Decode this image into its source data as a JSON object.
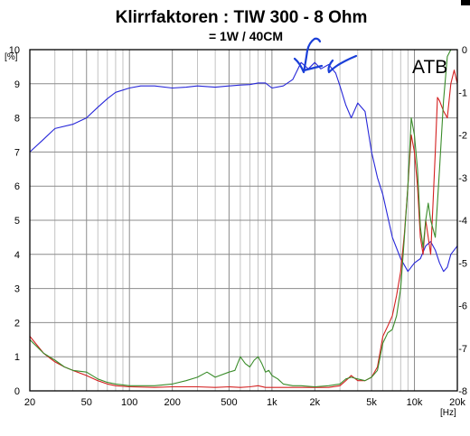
{
  "chart_data": {
    "type": "line",
    "title": "Klirrfaktoren : TIW 300 - 8 Ohm",
    "subtitle": "= 1W / 40CM",
    "xscale": "log",
    "xlim": [
      20,
      20000
    ],
    "x_ticks": [
      {
        "value": 20,
        "label": "20"
      },
      {
        "value": 50,
        "label": "50"
      },
      {
        "value": 100,
        "label": "100"
      },
      {
        "value": 200,
        "label": "200"
      },
      {
        "value": 500,
        "label": "500"
      },
      {
        "value": 1000,
        "label": "1k"
      },
      {
        "value": 2000,
        "label": "2k"
      },
      {
        "value": 5000,
        "label": "5k"
      },
      {
        "value": 10000,
        "label": "10k"
      },
      {
        "value": 20000,
        "label": "20k"
      }
    ],
    "x_unit": "[Hz]",
    "ylim": [
      0,
      10
    ],
    "y_ticks_left": [
      "0",
      "1",
      "2",
      "3",
      "4",
      "5",
      "6",
      "7",
      "8",
      "9",
      "10"
    ],
    "y_unit_left": "[%]",
    "y2lim": [
      -8,
      0
    ],
    "y_ticks_right": [
      "-8",
      "-7",
      "-6",
      "-5",
      "-4",
      "-3",
      "-2",
      "-1",
      "0"
    ],
    "grid": true,
    "annotation": "ATB",
    "series": [
      {
        "color": "#2727d9",
        "axis": "right",
        "x": [
          20,
          25,
          30,
          40,
          50,
          60,
          70,
          80,
          100,
          120,
          150,
          200,
          250,
          300,
          400,
          500,
          600,
          700,
          800,
          900,
          1000,
          1200,
          1400,
          1600,
          1800,
          2000,
          2200,
          2500,
          2800,
          3000,
          3300,
          3600,
          4000,
          4500,
          5000,
          5500,
          6000,
          7000,
          8000,
          9000,
          10000,
          11000,
          12000,
          13000,
          14000,
          15000,
          16000,
          17000,
          18000,
          20000
        ],
        "values": [
          -2.4,
          -2.1,
          -1.85,
          -1.75,
          -1.6,
          -1.35,
          -1.15,
          -1.0,
          -0.9,
          -0.85,
          -0.85,
          -0.9,
          -0.88,
          -0.85,
          -0.88,
          -0.85,
          -0.83,
          -0.82,
          -0.78,
          -0.78,
          -0.9,
          -0.85,
          -0.7,
          -0.3,
          -0.45,
          -0.3,
          -0.45,
          -0.35,
          -0.55,
          -0.85,
          -1.3,
          -1.6,
          -1.25,
          -1.45,
          -2.4,
          -3.0,
          -3.4,
          -4.4,
          -4.9,
          -5.2,
          -5.0,
          -4.9,
          -4.6,
          -4.5,
          -4.7,
          -5.0,
          -5.2,
          -5.1,
          -4.8,
          -4.6
        ]
      },
      {
        "color": "#d42020",
        "axis": "left",
        "x": [
          20,
          25,
          30,
          35,
          40,
          50,
          60,
          70,
          80,
          100,
          150,
          200,
          300,
          400,
          500,
          600,
          700,
          800,
          900,
          1000,
          1500,
          2000,
          2500,
          3000,
          3300,
          3600,
          4000,
          4500,
          5000,
          5500,
          6000,
          6500,
          7000,
          7500,
          8000,
          8500,
          9000,
          9500,
          10000,
          10500,
          11000,
          11500,
          12000,
          12500,
          13000,
          13500,
          14000,
          14500,
          15000,
          16000,
          17000,
          18000,
          19000,
          20000
        ],
        "values": [
          1.6,
          1.1,
          0.85,
          0.7,
          0.6,
          0.45,
          0.3,
          0.2,
          0.15,
          0.12,
          0.1,
          0.12,
          0.12,
          0.1,
          0.12,
          0.1,
          0.12,
          0.15,
          0.1,
          0.1,
          0.1,
          0.1,
          0.1,
          0.15,
          0.3,
          0.45,
          0.3,
          0.3,
          0.4,
          0.7,
          1.6,
          1.9,
          2.2,
          2.8,
          3.5,
          4.6,
          6.0,
          7.5,
          7.0,
          6.0,
          4.5,
          4.0,
          5.0,
          4.5,
          4.0,
          5.5,
          7.0,
          8.6,
          8.5,
          8.2,
          8.0,
          9.0,
          9.4,
          9.0
        ]
      },
      {
        "color": "#3a8c2a",
        "axis": "left",
        "x": [
          20,
          25,
          30,
          35,
          40,
          50,
          60,
          70,
          80,
          100,
          150,
          200,
          250,
          300,
          350,
          400,
          500,
          550,
          600,
          650,
          700,
          750,
          800,
          850,
          900,
          950,
          1000,
          1100,
          1200,
          1400,
          1600,
          2000,
          2500,
          3000,
          3300,
          3600,
          4000,
          4500,
          5000,
          5500,
          6000,
          6500,
          7000,
          7500,
          8000,
          8500,
          9000,
          9500,
          10000,
          10500,
          11000,
          11500,
          12000,
          12500,
          13000,
          14000,
          15000,
          16000,
          17000,
          18000,
          19000,
          20000
        ],
        "values": [
          1.5,
          1.1,
          0.9,
          0.7,
          0.6,
          0.55,
          0.35,
          0.25,
          0.2,
          0.15,
          0.15,
          0.2,
          0.3,
          0.4,
          0.55,
          0.4,
          0.55,
          0.6,
          1.0,
          0.8,
          0.7,
          0.9,
          1.0,
          0.8,
          0.55,
          0.6,
          0.45,
          0.35,
          0.2,
          0.15,
          0.15,
          0.12,
          0.15,
          0.2,
          0.35,
          0.4,
          0.35,
          0.3,
          0.4,
          0.6,
          1.4,
          1.7,
          1.8,
          2.2,
          3.0,
          4.5,
          6.0,
          8.0,
          7.5,
          6.5,
          4.8,
          4.2,
          5.0,
          5.5,
          5.0,
          4.5,
          6.5,
          8.5,
          9.8,
          10.0,
          10.0,
          10.0
        ]
      }
    ]
  },
  "scribble": {
    "color": "#1a3fd8"
  }
}
